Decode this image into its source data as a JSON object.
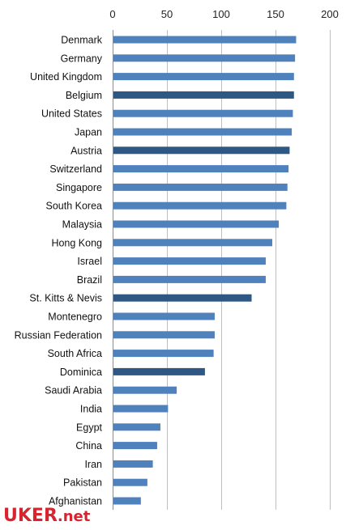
{
  "chart_data": {
    "type": "bar",
    "orientation": "horizontal",
    "categories": [
      "Denmark",
      "Germany",
      "United Kingdom",
      "Belgium",
      "United States",
      "Japan",
      "Austria",
      "Switzerland",
      "Singapore",
      "South Korea",
      "Malaysia",
      "Hong Kong",
      "Israel",
      "Brazil",
      "St. Kitts & Nevis",
      "Montenegro",
      "Russian Federation",
      "South Africa",
      "Dominica",
      "Saudi Arabia",
      "India",
      "Egypt",
      "China",
      "Iran",
      "Pakistan",
      "Afghanistan"
    ],
    "values": [
      169,
      168,
      167,
      167,
      166,
      165,
      163,
      162,
      161,
      160,
      153,
      147,
      141,
      141,
      128,
      94,
      94,
      93,
      85,
      59,
      51,
      44,
      41,
      37,
      32,
      26
    ],
    "highlighted": [
      "Belgium",
      "Austria",
      "St. Kitts & Nevis",
      "Dominica"
    ],
    "xlim": [
      0,
      200
    ],
    "xticks": [
      0,
      50,
      100,
      150,
      200
    ],
    "xaxis_position": "top",
    "grid": true,
    "title": "",
    "xlabel": "",
    "ylabel": "",
    "colors": {
      "bar": "#4f81bd",
      "highlight": "#2e5783",
      "grid": "#bfbfbf"
    }
  },
  "watermark": {
    "main": "UKER",
    "tld": ".net"
  }
}
